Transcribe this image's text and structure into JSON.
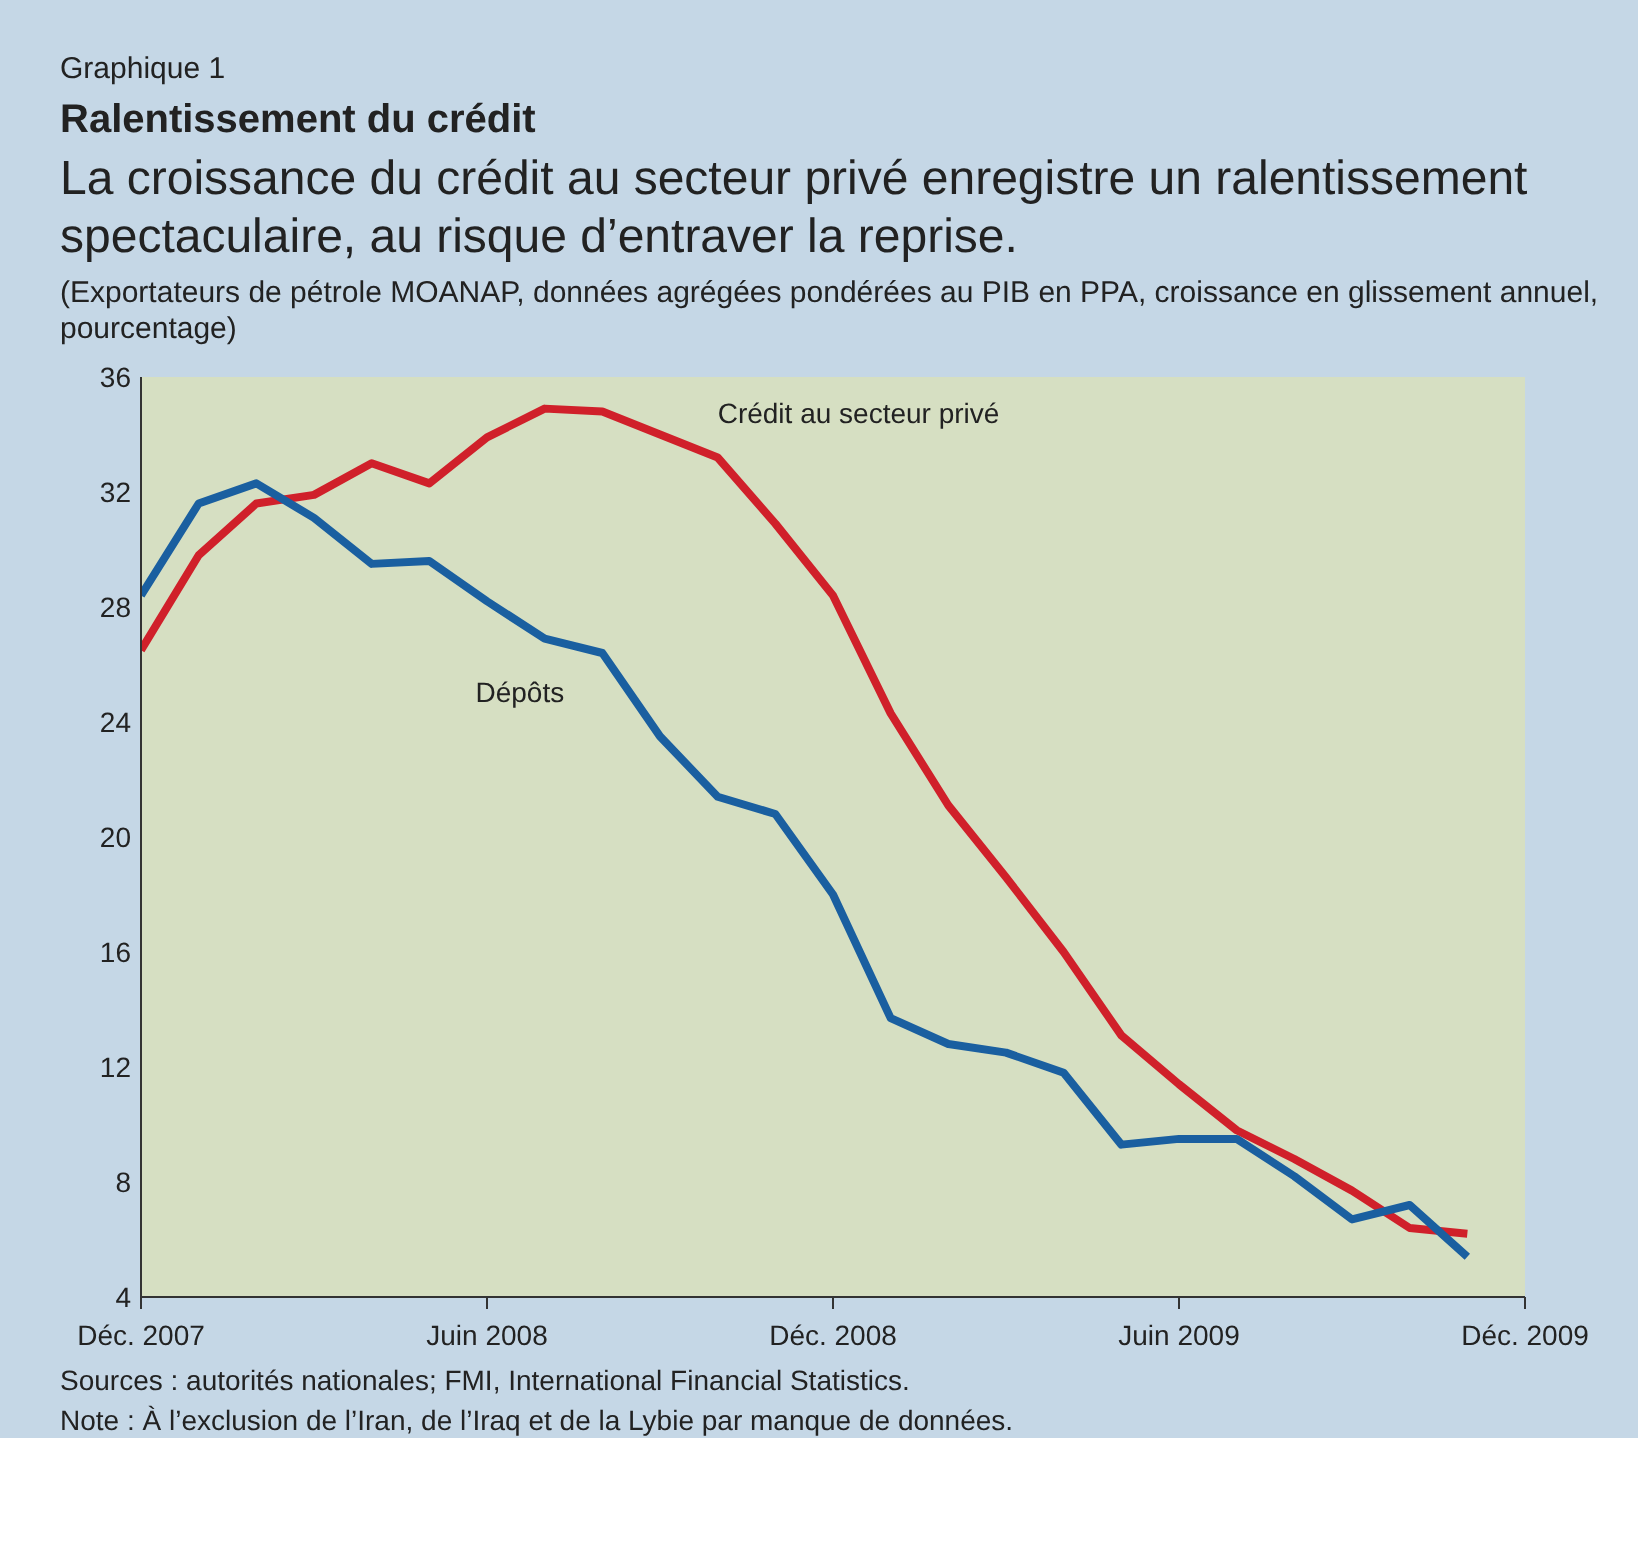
{
  "chart_data": {
    "type": "line",
    "title": "Ralentissement du crédit",
    "subtitle": "La croissance du crédit au secteur privé enregistre un ralentissement spectaculaire, au risque d’entraver la reprise.",
    "annotations": [
      "Graphique 1",
      "(Exportateurs de pétrole MOANAP, données agrégées pondérées au PIB en PPA, croissance en glissement annuel, pourcentage)",
      "Sources : autorités nationales; FMI, International Financial Statistics.",
      "Note : À l’exclusion de l’Iran, de l’Iraq et de la Lybie par manque de données."
    ],
    "x": [
      "2007-12",
      "2008-01",
      "2008-02",
      "2008-03",
      "2008-04",
      "2008-05",
      "2008-06",
      "2008-07",
      "2008-08",
      "2008-09",
      "2008-10",
      "2008-11",
      "2008-12",
      "2009-01",
      "2009-02",
      "2009-03",
      "2009-04",
      "2009-05",
      "2009-06",
      "2009-07",
      "2009-08",
      "2009-09",
      "2009-10",
      "2009-11"
    ],
    "series": [
      {
        "name": "Crédit au secteur privé",
        "color": "#d0202a",
        "values": [
          26.5,
          29.8,
          31.6,
          31.9,
          33.0,
          32.3,
          33.9,
          34.9,
          34.8,
          34.0,
          33.2,
          30.9,
          28.4,
          24.3,
          21.1,
          18.6,
          16.0,
          13.1,
          11.4,
          9.8,
          8.8,
          7.7,
          6.4,
          6.2
        ]
      },
      {
        "name": "Dépôts",
        "color": "#1a5fa0",
        "values": [
          28.4,
          31.6,
          32.3,
          31.1,
          29.5,
          29.6,
          28.2,
          26.9,
          26.4,
          23.5,
          21.4,
          20.8,
          18.0,
          13.7,
          12.8,
          12.5,
          11.8,
          9.3,
          9.5,
          9.5,
          8.2,
          6.7,
          7.2,
          5.4
        ]
      }
    ],
    "xlim": [
      "2007-12",
      "2009-12"
    ],
    "xticks": [
      {
        "value": "2007-12",
        "label": "Déc. 2007"
      },
      {
        "value": "2008-06",
        "label": "Juin 2008"
      },
      {
        "value": "2008-12",
        "label": "Déc. 2008"
      },
      {
        "value": "2009-06",
        "label": "Juin 2009"
      },
      {
        "value": "2009-12",
        "label": "Déc. 2009"
      }
    ],
    "ylim": [
      4,
      36
    ],
    "yticks": [
      4,
      8,
      12,
      16,
      20,
      24,
      28,
      32,
      36
    ],
    "grid": false,
    "line_style": "solid",
    "marker": "none"
  }
}
